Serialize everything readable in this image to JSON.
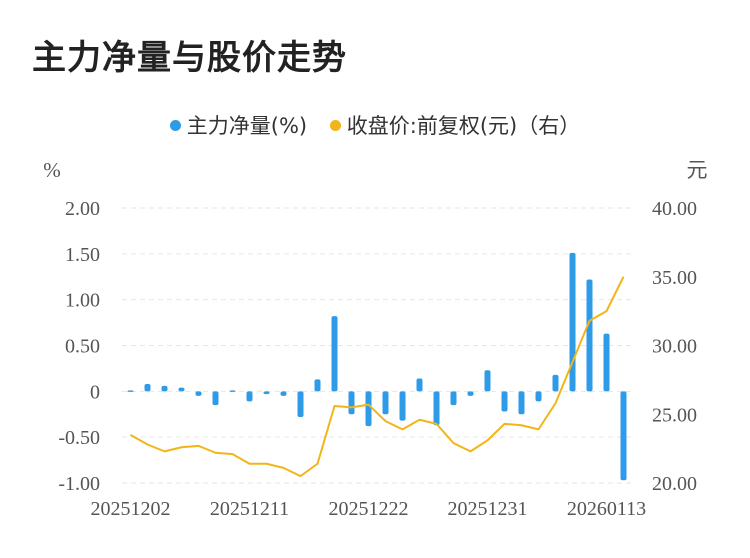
{
  "title": "主力净量与股价走势",
  "legend": {
    "bar_label": "主力净量(%)",
    "line_label": "收盘价:前复权(元)（右）"
  },
  "colors": {
    "bar": "#2e9be8",
    "line": "#f2b518",
    "grid": "#e6e6e6",
    "text": "#555555"
  },
  "chart_data": {
    "type": "bar",
    "left_unit": "%",
    "right_unit": "元",
    "ylim_left": [
      -1.0,
      2.0
    ],
    "ylim_right": [
      20.0,
      40.0
    ],
    "left_ticks": [
      "2.00",
      "1.50",
      "1.00",
      "0.50",
      "0",
      "-0.50",
      "-1.00"
    ],
    "right_ticks": [
      "40.00",
      "35.00",
      "30.00",
      "25.00",
      "20.00"
    ],
    "x_tick_labels": [
      "20251202",
      "20251211",
      "20251222",
      "20251231",
      "20260113"
    ],
    "x_tick_index": [
      0,
      7,
      14,
      21,
      28
    ],
    "series": [
      {
        "name": "主力净量(%)",
        "kind": "bar",
        "values": [
          0.01,
          0.08,
          0.06,
          0.04,
          -0.05,
          -0.15,
          0.01,
          -0.11,
          -0.03,
          -0.05,
          -0.28,
          0.13,
          0.82,
          -0.25,
          -0.38,
          -0.25,
          -0.32,
          0.14,
          -0.37,
          -0.15,
          -0.05,
          0.23,
          -0.22,
          -0.25,
          -0.11,
          0.18,
          1.51,
          1.22,
          0.63,
          -0.97
        ]
      },
      {
        "name": "收盘价:前复权(元)（右）",
        "kind": "line",
        "values": [
          23.5,
          22.8,
          22.3,
          22.6,
          22.7,
          22.2,
          22.1,
          21.4,
          21.4,
          21.1,
          20.5,
          21.4,
          25.6,
          25.5,
          25.7,
          24.5,
          23.9,
          24.6,
          24.3,
          22.9,
          22.3,
          23.1,
          24.3,
          24.2,
          23.9,
          25.8,
          28.8,
          31.8,
          32.5,
          35.0
        ]
      }
    ]
  }
}
